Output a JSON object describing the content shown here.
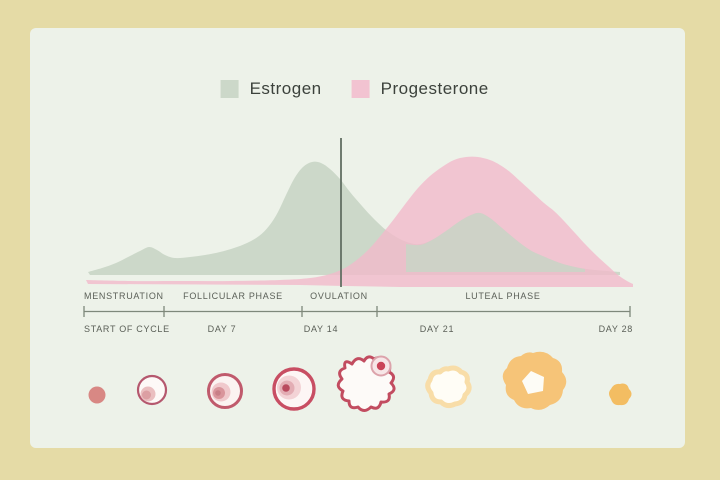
{
  "legend": {
    "items": [
      {
        "label": "Estrogen",
        "color": "#ccd8c9",
        "icon": "estrogen-swatch-icon"
      },
      {
        "label": "Progesterone",
        "color": "#f2c3d1",
        "icon": "progesterone-swatch-icon"
      }
    ]
  },
  "timeline": {
    "y": 311.5,
    "x_start": 84,
    "x_end": 630,
    "ticks": [
      84,
      164,
      302,
      377,
      630
    ],
    "phase_row_top": 291,
    "day_row_top": 324,
    "phases": [
      {
        "label": "MENSTRUATION",
        "x": 84,
        "align": "left"
      },
      {
        "label": "FOLLICULAR PHASE",
        "x": 233,
        "align": "center"
      },
      {
        "label": "OVULATION",
        "x": 339,
        "align": "center"
      },
      {
        "label": "LUTEAL PHASE",
        "x": 503,
        "align": "center"
      }
    ],
    "days": [
      {
        "label": "START OF CYCLE",
        "x": 84,
        "align": "left"
      },
      {
        "label": "DAY 7",
        "x": 222,
        "align": "center"
      },
      {
        "label": "DAY 14",
        "x": 321,
        "align": "center"
      },
      {
        "label": "DAY 21",
        "x": 437,
        "align": "center"
      },
      {
        "label": "DAY 28",
        "x": 633,
        "align": "right"
      }
    ]
  },
  "chart_data": {
    "type": "area",
    "title": "",
    "x_unit": "day of menstrual cycle",
    "x_range": [
      0,
      28
    ],
    "y_range": [
      0,
      100
    ],
    "grid": false,
    "legend_position": "top",
    "phases": [
      "Menstruation",
      "Follicular Phase",
      "Ovulation",
      "Luteal Phase"
    ],
    "phase_day_bounds": [
      0,
      4,
      11,
      15,
      28
    ],
    "day_ticks": [
      "Start of Cycle",
      "Day 7",
      "Day 14",
      "Day 21",
      "Day 28"
    ],
    "annotations": [
      {
        "label": "ovulation marker line",
        "x_day": 13.2
      }
    ],
    "series": [
      {
        "name": "Estrogen",
        "color": "#ccd8c9",
        "points": [
          [
            0,
            10
          ],
          [
            3,
            30
          ],
          [
            4.5,
            22
          ],
          [
            8,
            32
          ],
          [
            10,
            62
          ],
          [
            11.8,
            96
          ],
          [
            13.2,
            88
          ],
          [
            15,
            45
          ],
          [
            17,
            33
          ],
          [
            20,
            56
          ],
          [
            22.5,
            36
          ],
          [
            25,
            16
          ],
          [
            28,
            11
          ]
        ]
      },
      {
        "name": "Progesterone",
        "color": "#f2c3d1",
        "points": [
          [
            0,
            5
          ],
          [
            11,
            5
          ],
          [
            13,
            12
          ],
          [
            15,
            40
          ],
          [
            17,
            76
          ],
          [
            19.6,
            100
          ],
          [
            21,
            97
          ],
          [
            23,
            73
          ],
          [
            25,
            42
          ],
          [
            26.7,
            19
          ],
          [
            28,
            1
          ]
        ]
      }
    ]
  },
  "chart_render": {
    "estrogen": {
      "points": [
        [
          88,
          272
        ],
        [
          102,
          268
        ],
        [
          116,
          263
        ],
        [
          130,
          256
        ],
        [
          140,
          251
        ],
        [
          149,
          247
        ],
        [
          157,
          250
        ],
        [
          165,
          255
        ],
        [
          175,
          258
        ],
        [
          190,
          257
        ],
        [
          205,
          255
        ],
        [
          220,
          252
        ],
        [
          234,
          248
        ],
        [
          247,
          243
        ],
        [
          259,
          236
        ],
        [
          269,
          226
        ],
        [
          278,
          212
        ],
        [
          286,
          195
        ],
        [
          294,
          179
        ],
        [
          303,
          167
        ],
        [
          312,
          162
        ],
        [
          321,
          163
        ],
        [
          330,
          169
        ],
        [
          340,
          179
        ],
        [
          350,
          192
        ],
        [
          362,
          206
        ],
        [
          374,
          219
        ],
        [
          386,
          230
        ],
        [
          398,
          238
        ],
        [
          410,
          243
        ],
        [
          420,
          244
        ],
        [
          432,
          240
        ],
        [
          446,
          231
        ],
        [
          460,
          221
        ],
        [
          471,
          215
        ],
        [
          480,
          213
        ],
        [
          490,
          218
        ],
        [
          502,
          228
        ],
        [
          515,
          239
        ],
        [
          530,
          250
        ],
        [
          545,
          257
        ],
        [
          560,
          263
        ],
        [
          575,
          267
        ],
        [
          595,
          270
        ],
        [
          620,
          272
        ]
      ],
      "close": [
        [
          620,
          275
        ],
        [
          90,
          275
        ]
      ],
      "fill": "#ccd8c9",
      "opacity": 1
    },
    "progesterone": {
      "points": [
        [
          86,
          280
        ],
        [
          130,
          281
        ],
        [
          180,
          281
        ],
        [
          230,
          281
        ],
        [
          280,
          280
        ],
        [
          310,
          278
        ],
        [
          330,
          274
        ],
        [
          345,
          268
        ],
        [
          358,
          259
        ],
        [
          370,
          248
        ],
        [
          382,
          234
        ],
        [
          394,
          219
        ],
        [
          406,
          203
        ],
        [
          418,
          188
        ],
        [
          430,
          176
        ],
        [
          442,
          167
        ],
        [
          454,
          160
        ],
        [
          466,
          157
        ],
        [
          478,
          157
        ],
        [
          490,
          160
        ],
        [
          500,
          165
        ],
        [
          510,
          172
        ],
        [
          520,
          181
        ],
        [
          532,
          192
        ],
        [
          544,
          203
        ],
        [
          554,
          211
        ],
        [
          564,
          221
        ],
        [
          575,
          233
        ],
        [
          586,
          245
        ],
        [
          597,
          256
        ],
        [
          608,
          266
        ],
        [
          618,
          275
        ],
        [
          627,
          281
        ],
        [
          633,
          284
        ]
      ],
      "close": [
        [
          633,
          287
        ],
        [
          400,
          287
        ],
        [
          345,
          286
        ],
        [
          300,
          285
        ],
        [
          88,
          284
        ]
      ],
      "fill": "#f2b9cb",
      "opacity": 0.78
    },
    "estrogen_bump_overlay": {
      "points": [
        [
          406,
          244
        ],
        [
          420,
          245
        ],
        [
          432,
          240
        ],
        [
          446,
          231
        ],
        [
          460,
          221
        ],
        [
          471,
          215
        ],
        [
          480,
          213
        ],
        [
          490,
          218
        ],
        [
          502,
          228
        ],
        [
          515,
          239
        ],
        [
          530,
          250
        ],
        [
          545,
          257
        ],
        [
          560,
          263
        ],
        [
          575,
          267
        ],
        [
          585,
          269
        ]
      ],
      "close": [
        [
          585,
          272
        ],
        [
          406,
          272
        ]
      ],
      "fill": "#cbd4c6",
      "opacity": 0.9
    },
    "ovulation_line": {
      "x": 341,
      "y1": 138,
      "y2": 287,
      "color": "#626f63",
      "width": 1.8
    }
  },
  "colors": {
    "background_border": "#e5dba6",
    "panel": "#edf2e9",
    "estrogen": "#ccd8c9",
    "progesterone": "#f2c3d1",
    "timeline": "#7e887b",
    "label_text": "#5a5f57",
    "legend_text": "#3c423c",
    "follicle_outline": "#c24c60",
    "corpus_luteum": "#f6c478"
  },
  "icons": [
    "follicle-day1-icon",
    "follicle-primary-icon",
    "follicle-secondary-icon",
    "follicle-mature-icon",
    "ovulation-rupture-icon",
    "early-corpus-luteum-icon",
    "corpus-luteum-icon",
    "corpus-albicans-icon"
  ]
}
